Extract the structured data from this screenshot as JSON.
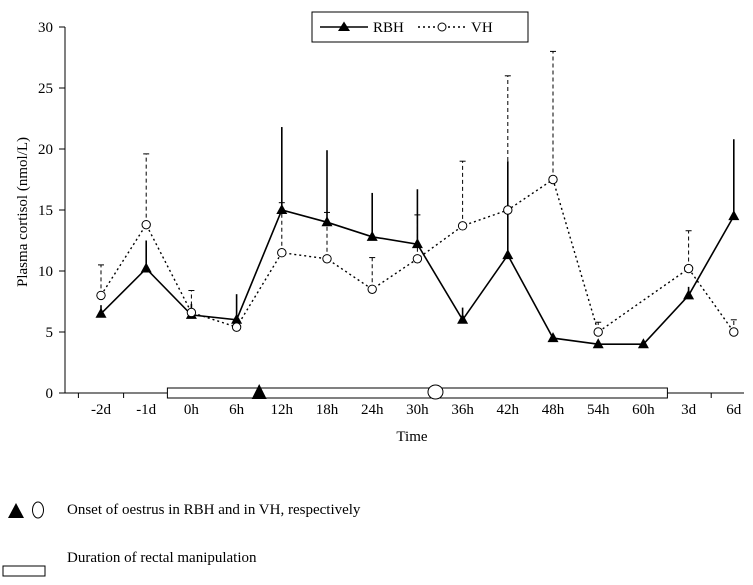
{
  "chart_data": {
    "type": "line",
    "title": "",
    "xlabel": "Time",
    "ylabel": "Plasma cortisol (nmol/L)",
    "ylim": [
      0,
      30
    ],
    "yticks": [
      "0",
      "5",
      "10",
      "15",
      "20",
      "25",
      "30"
    ],
    "categories": [
      "-2d",
      "-1d",
      "0h",
      "6h",
      "12h",
      "18h",
      "24h",
      "30h",
      "36h",
      "42h",
      "48h",
      "54h",
      "60h",
      "3d",
      "6d"
    ],
    "grid": false,
    "legend_position": "top-center",
    "series": [
      {
        "name": "RBH",
        "line_style": "solid",
        "marker": "filled-triangle",
        "values": [
          6.5,
          10.2,
          6.4,
          6.0,
          15.0,
          14.0,
          12.8,
          12.2,
          6.0,
          11.3,
          4.5,
          4.0,
          4.0,
          8.0,
          14.5
        ],
        "error_upper": [
          7.2,
          12.5,
          7.3,
          8.1,
          21.8,
          19.9,
          16.4,
          16.7,
          7.0,
          19.0,
          null,
          null,
          null,
          8.7,
          20.8
        ]
      },
      {
        "name": "VH",
        "line_style": "dotted",
        "marker": "open-circle",
        "values": [
          8.0,
          13.8,
          6.6,
          5.4,
          11.5,
          11.0,
          8.5,
          11.0,
          13.7,
          15.0,
          17.5,
          5.0,
          null,
          10.2,
          5.0
        ],
        "error_upper": [
          10.5,
          19.6,
          8.4,
          5.9,
          15.6,
          14.8,
          11.1,
          14.6,
          19.0,
          26.0,
          28.0,
          5.8,
          null,
          13.3,
          6.0
        ]
      }
    ],
    "markers_on_axis": {
      "manipulation_bar": {
        "from_category": "0h",
        "to_category": "60h",
        "y": 0
      },
      "oestrus_onset_RBH": {
        "between": [
          "6h",
          "12h"
        ],
        "fraction": 0.5
      },
      "oestrus_onset_VH": {
        "between": [
          "30h",
          "36h"
        ],
        "fraction": 0.4
      }
    },
    "footnotes": [
      {
        "id": "oestrus",
        "text": "Onset of oestrus in RBH and in VH, respectively"
      },
      {
        "id": "manipulation",
        "text": "Duration of rectal manipulation"
      }
    ]
  }
}
